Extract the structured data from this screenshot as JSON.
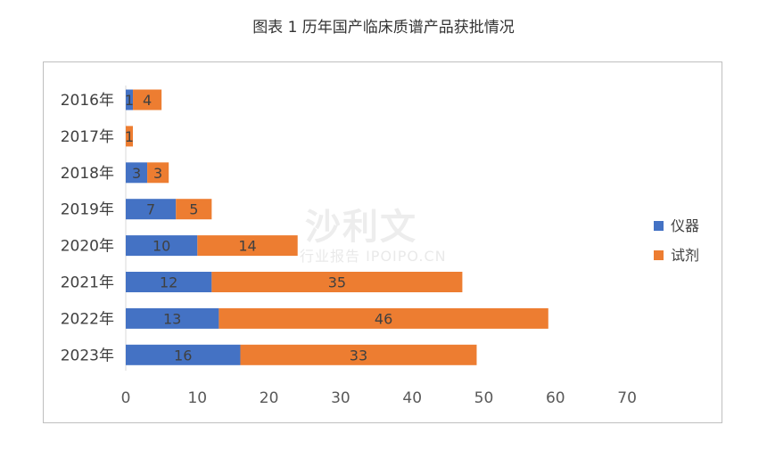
{
  "title": "图表 1 历年国产临床质谱产品获批情况",
  "colors": {
    "instrument": "#4472c4",
    "reagent": "#ed7d31"
  },
  "watermark": {
    "main": "沙利文",
    "sub": "行业报告 IPOIPO.CN"
  },
  "chart_data": {
    "type": "bar",
    "orientation": "horizontal",
    "stacked": true,
    "categories": [
      "2016年",
      "2017年",
      "2018年",
      "2019年",
      "2020年",
      "2021年",
      "2022年",
      "2023年"
    ],
    "series": [
      {
        "name": "仪器",
        "values": [
          1,
          0,
          3,
          7,
          10,
          12,
          13,
          16
        ]
      },
      {
        "name": "试剂",
        "values": [
          4,
          1,
          3,
          5,
          14,
          35,
          46,
          33
        ]
      }
    ],
    "xlim": [
      0,
      70
    ],
    "xticks": [
      0,
      10,
      20,
      30,
      40,
      50,
      60,
      70
    ],
    "legend_position": "right",
    "grid": false
  }
}
